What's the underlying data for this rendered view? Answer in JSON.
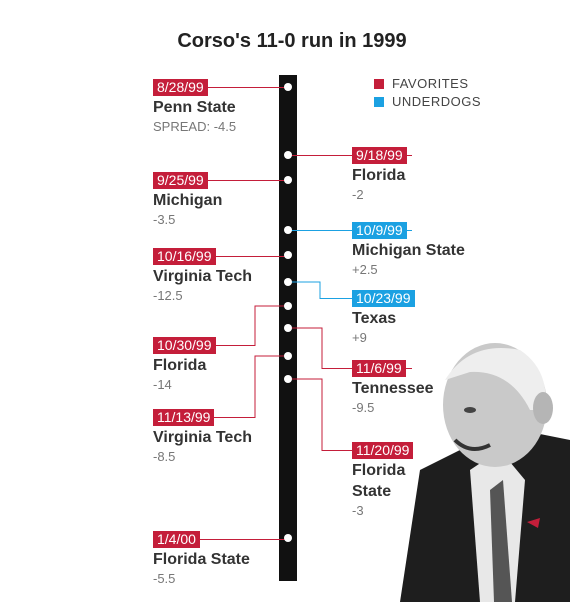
{
  "title": "Corso's 11-0 run in 1999",
  "legend": {
    "favorites": "FAVORITES",
    "underdogs": "UNDERDOGS"
  },
  "spread_label": "SPREAD:",
  "games": [
    {
      "date": "8/28/99",
      "opponent": "Penn State",
      "spread": "-4.5",
      "kind": "favorites"
    },
    {
      "date": "9/18/99",
      "opponent": "Florida",
      "spread": "-2",
      "kind": "favorites"
    },
    {
      "date": "9/25/99",
      "opponent": "Michigan",
      "spread": "-3.5",
      "kind": "favorites"
    },
    {
      "date": "10/9/99",
      "opponent": "Michigan State",
      "spread": "+2.5",
      "kind": "underdogs"
    },
    {
      "date": "10/16/99",
      "opponent": "Virginia Tech",
      "spread": "-12.5",
      "kind": "favorites"
    },
    {
      "date": "10/23/99",
      "opponent": "Texas",
      "spread": "+9",
      "kind": "underdogs"
    },
    {
      "date": "10/30/99",
      "opponent": "Florida",
      "spread": "-14",
      "kind": "favorites"
    },
    {
      "date": "11/6/99",
      "opponent": "Tennessee",
      "spread": "-9.5",
      "kind": "favorites"
    },
    {
      "date": "11/13/99",
      "opponent": "Virginia Tech",
      "spread": "-8.5",
      "kind": "favorites"
    },
    {
      "date": "11/20/99",
      "opponent": "Florida State",
      "spread": "-3",
      "kind": "favorites"
    },
    {
      "date": "1/4/00",
      "opponent": "Florida State",
      "spread": "-5.5",
      "kind": "favorites"
    }
  ]
}
